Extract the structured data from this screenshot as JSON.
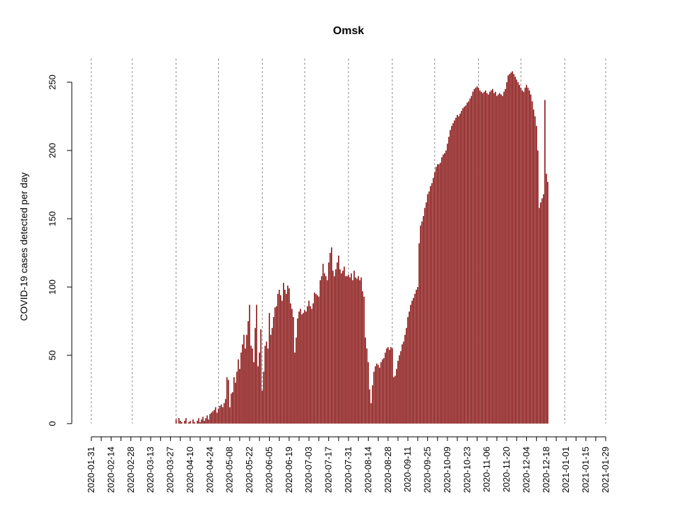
{
  "chart_data": {
    "type": "bar",
    "title": "Omsk",
    "xlabel": "",
    "ylabel": "COVID-19 cases detected per day",
    "start_date": "2020-01-31",
    "end_date": "2021-01-29",
    "ylim": [
      0,
      250
    ],
    "yticks": [
      0,
      50,
      100,
      150,
      200,
      250
    ],
    "xtick_labels": [
      "2020-01-31",
      "2020-02-14",
      "2020-02-28",
      "2020-03-13",
      "2020-03-27",
      "2020-04-10",
      "2020-04-24",
      "2020-05-08",
      "2020-05-22",
      "2020-06-05",
      "2020-06-19",
      "2020-07-03",
      "2020-07-17",
      "2020-07-31",
      "2020-08-14",
      "2020-08-28",
      "2020-09-11",
      "2020-09-25",
      "2020-10-09",
      "2020-10-23",
      "2020-11-06",
      "2020-11-20",
      "2020-12-04",
      "2020-12-18",
      "2021-01-01",
      "2021-01-15",
      "2021-01-29"
    ],
    "vlines": [
      "2020-01-31",
      "2020-02-29",
      "2020-03-31",
      "2020-04-30",
      "2020-05-31",
      "2020-06-30",
      "2020-07-31",
      "2020-08-31",
      "2020-09-30",
      "2020-10-31",
      "2020-11-30",
      "2020-12-31",
      "2021-01-29"
    ],
    "grid": "dashed vertical lines at month boundaries",
    "bar_color": "#7f0000",
    "values": [
      0,
      0,
      0,
      0,
      0,
      0,
      0,
      0,
      0,
      0,
      0,
      0,
      0,
      0,
      0,
      0,
      0,
      0,
      0,
      0,
      0,
      0,
      0,
      0,
      0,
      0,
      0,
      0,
      0,
      0,
      0,
      0,
      0,
      0,
      0,
      0,
      0,
      0,
      0,
      0,
      0,
      0,
      0,
      0,
      0,
      0,
      0,
      0,
      0,
      0,
      0,
      0,
      0,
      0,
      0,
      0,
      0,
      0,
      0,
      0,
      3,
      0,
      4,
      2,
      1,
      0,
      2,
      4,
      0,
      1,
      2,
      0,
      3,
      1,
      0,
      2,
      4,
      1,
      3,
      5,
      2,
      4,
      6,
      3,
      7,
      8,
      9,
      10,
      12,
      8,
      11,
      13,
      14,
      12,
      15,
      18,
      34,
      32,
      12,
      22,
      23,
      34,
      30,
      38,
      47,
      40,
      52,
      58,
      65,
      55,
      65,
      75,
      87,
      57,
      55,
      45,
      70,
      87,
      42,
      52,
      69,
      24,
      38,
      57,
      60,
      55,
      81,
      65,
      70,
      78,
      85,
      86,
      95,
      98,
      94,
      90,
      103,
      98,
      95,
      101,
      99,
      88,
      84,
      78,
      52,
      63,
      77,
      82,
      84,
      80,
      81,
      83,
      82,
      86,
      90,
      86,
      84,
      88,
      96,
      95,
      94,
      93,
      105,
      108,
      117,
      110,
      108,
      105,
      118,
      125,
      129,
      112,
      108,
      113,
      118,
      123,
      113,
      110,
      112,
      115,
      108,
      108,
      109,
      107,
      110,
      105,
      112,
      107,
      106,
      108,
      105,
      107,
      97,
      93,
      63,
      55,
      45,
      25,
      15,
      28,
      38,
      42,
      44,
      43,
      41,
      45,
      47,
      48,
      52,
      55,
      56,
      54,
      56,
      55,
      34,
      35,
      40,
      46,
      50,
      53,
      58,
      60,
      65,
      70,
      78,
      82,
      87,
      90,
      92,
      95,
      98,
      100,
      132,
      145,
      148,
      152,
      158,
      162,
      168,
      170,
      174,
      176,
      180,
      184,
      188,
      190,
      190,
      191,
      195,
      197,
      198,
      200,
      205,
      210,
      215,
      218,
      220,
      222,
      224,
      226,
      225,
      227,
      229,
      231,
      232,
      233,
      235,
      236,
      238,
      240,
      243,
      245,
      246,
      247,
      246,
      244,
      243,
      242,
      243,
      244,
      242,
      241,
      243,
      244,
      245,
      242,
      243,
      240,
      241,
      242,
      241,
      240,
      243,
      245,
      250,
      255,
      256,
      257,
      258,
      256,
      254,
      252,
      250,
      248,
      246,
      244,
      243,
      246,
      248,
      246,
      244,
      241,
      236,
      230,
      225,
      218,
      200,
      158,
      162,
      165,
      168,
      237,
      183,
      177
    ]
  }
}
